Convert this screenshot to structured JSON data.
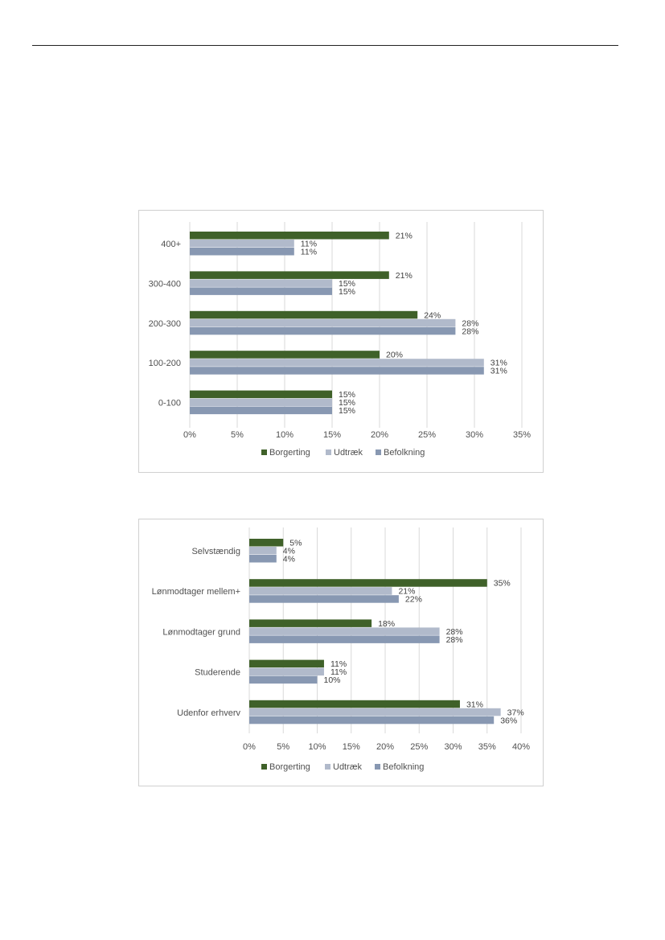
{
  "colors": {
    "Borgerting": "#3f6129",
    "Udtræk": "#b1bacb",
    "Befolkning": "#8898b2",
    "gridline": "#d9d9d9"
  },
  "chart_data": [
    {
      "type": "bar",
      "orientation": "horizontal",
      "categories": [
        "400+",
        "300-400",
        "200-300",
        "100-200",
        "0-100"
      ],
      "series": [
        {
          "name": "Borgerting",
          "values": [
            21,
            21,
            24,
            20,
            15
          ],
          "labels": [
            "21%",
            "21%",
            "24%",
            "20%",
            "15%"
          ]
        },
        {
          "name": "Udtræk",
          "values": [
            11,
            15,
            28,
            31,
            15
          ],
          "labels": [
            "11%",
            "15%",
            "28%",
            "31%",
            "15%"
          ]
        },
        {
          "name": "Befolkning",
          "values": [
            11,
            15,
            28,
            31,
            15
          ],
          "labels": [
            "11%",
            "15%",
            "28%",
            "31%",
            "15%"
          ]
        }
      ],
      "xlim": [
        0,
        35
      ],
      "xticks": [
        "0%",
        "5%",
        "10%",
        "15%",
        "20%",
        "25%",
        "30%",
        "35%"
      ],
      "grid": true,
      "legend": "bottom",
      "legend_entries": [
        "Borgerting",
        "Udtræk",
        "Befolkning"
      ]
    },
    {
      "type": "bar",
      "orientation": "horizontal",
      "categories": [
        "Selvstændig",
        "Lønmodtager mellem+",
        "Lønmodtager grund",
        "Studerende",
        "Udenfor erhverv"
      ],
      "series": [
        {
          "name": "Borgerting",
          "values": [
            5,
            35,
            18,
            11,
            31
          ],
          "labels": [
            "5%",
            "35%",
            "18%",
            "11%",
            "31%"
          ]
        },
        {
          "name": "Udtræk",
          "values": [
            4,
            21,
            28,
            11,
            37
          ],
          "labels": [
            "4%",
            "21%",
            "28%",
            "11%",
            "37%"
          ]
        },
        {
          "name": "Befolkning",
          "values": [
            4,
            22,
            28,
            10,
            36
          ],
          "labels": [
            "4%",
            "22%",
            "28%",
            "10%",
            "36%"
          ]
        }
      ],
      "xlim": [
        0,
        40
      ],
      "xticks": [
        "0%",
        "5%",
        "10%",
        "15%",
        "20%",
        "25%",
        "30%",
        "35%",
        "40%"
      ],
      "grid": true,
      "legend": "bottom",
      "legend_entries": [
        "Borgerting",
        "Udtræk",
        "Befolkning"
      ]
    }
  ]
}
